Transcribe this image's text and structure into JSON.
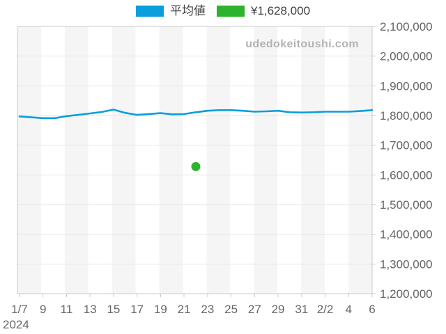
{
  "page": {
    "background": "#ffffff"
  },
  "legend": {
    "position": "top",
    "items": [
      {
        "label": "平均値",
        "color": "#0a9edd",
        "kind": "line-series"
      },
      {
        "label": "¥1,628,000",
        "color": "#2db32d",
        "kind": "point-marker"
      }
    ]
  },
  "watermark": {
    "text": "udedokeitoushi.com",
    "color": "#b3b3b3"
  },
  "axis_colors": {
    "label": "#666666",
    "grid": "#e6e6e6",
    "border": "#c9c9c9",
    "tick": "#c9c9c9"
  },
  "chart_data": {
    "type": "line",
    "title": "",
    "year": "2024",
    "x_dates": [
      "1/7",
      "1/8",
      "1/9",
      "1/10",
      "1/11",
      "1/12",
      "1/13",
      "1/14",
      "1/15",
      "1/16",
      "1/17",
      "1/18",
      "1/19",
      "1/20",
      "1/21",
      "1/22",
      "1/23",
      "1/24",
      "1/25",
      "1/26",
      "1/27",
      "1/28",
      "1/29",
      "1/30",
      "1/31",
      "2/1",
      "2/2",
      "2/3",
      "2/4",
      "2/5",
      "2/6"
    ],
    "x_axis_tick_labels": [
      "1/7",
      "9",
      "11",
      "13",
      "15",
      "17",
      "19",
      "21",
      "23",
      "25",
      "27",
      "29",
      "31",
      "2/2",
      "4",
      "6"
    ],
    "y_axis_tick_labels": [
      "2,100,000",
      "2,000,000",
      "1,900,000",
      "1,800,000",
      "1,700,000",
      "1,600,000",
      "1,500,000",
      "1,400,000",
      "1,300,000",
      "1,200,000"
    ],
    "ylim": [
      1200000,
      2100000
    ],
    "y_tick_step": 100000,
    "grid": "horizontal",
    "plot_band_colors": [
      "#f5f5f5",
      "#ffffff"
    ],
    "legend_position": "top",
    "series": [
      {
        "name": "平均値",
        "type": "line",
        "color": "#0a9edd",
        "values": [
          1797000,
          1794000,
          1791000,
          1791000,
          1798000,
          1802000,
          1807000,
          1812000,
          1820000,
          1809000,
          1802000,
          1805000,
          1808000,
          1804000,
          1805000,
          1811000,
          1816000,
          1818000,
          1818000,
          1816000,
          1813000,
          1814000,
          1816000,
          1811000,
          1810000,
          1811000,
          1813000,
          1813000,
          1813000,
          1815000,
          1818000
        ]
      },
      {
        "name": "¥1,628,000",
        "type": "scatter",
        "color": "#2db32d",
        "points": [
          {
            "date": "1/22",
            "x_index": 15,
            "value": 1628000
          }
        ]
      }
    ]
  }
}
